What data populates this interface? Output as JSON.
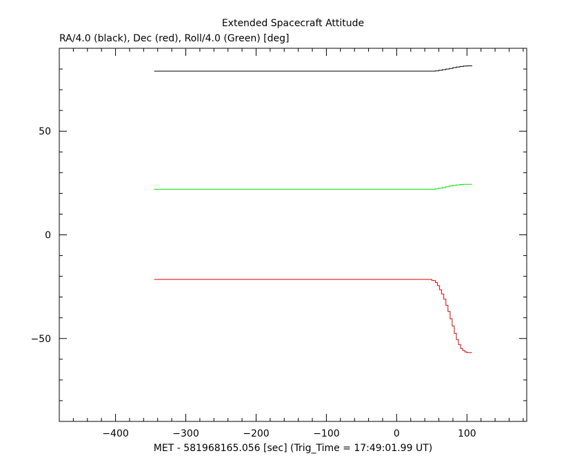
{
  "chart_data": {
    "type": "line",
    "title": "Extended Spacecraft Attitude",
    "subtitle": "RA/4.0 (black), Dec (red), Roll/4.0 (Green) [deg]",
    "xlabel": "MET - 581968165.056 [sec] (Trig_Time = 17:49:01.99 UT)",
    "ylabel": "",
    "xlim": [
      -480,
      185
    ],
    "ylim": [
      -90,
      90
    ],
    "grid": false,
    "legend": "none",
    "x_ticks": [
      {
        "value": -400,
        "label": "−400"
      },
      {
        "value": -300,
        "label": "−300"
      },
      {
        "value": -200,
        "label": "−200"
      },
      {
        "value": -100,
        "label": "−100"
      },
      {
        "value": 0,
        "label": "0"
      },
      {
        "value": 100,
        "label": "100"
      }
    ],
    "y_ticks": [
      {
        "value": 50,
        "label": "50"
      },
      {
        "value": 0,
        "label": "0"
      },
      {
        "value": -50,
        "label": "−50"
      }
    ],
    "x_minor_step": 20,
    "y_minor_step": 10,
    "series": [
      {
        "color": "#000000",
        "step": true,
        "points": [
          [
            -345,
            79.0
          ],
          [
            50,
            79.0
          ],
          [
            55,
            79.1
          ],
          [
            60,
            79.4
          ],
          [
            65,
            79.7
          ],
          [
            70,
            80.0
          ],
          [
            75,
            80.3
          ],
          [
            80,
            80.7
          ],
          [
            85,
            81.0
          ],
          [
            90,
            81.2
          ],
          [
            95,
            81.4
          ],
          [
            100,
            81.5
          ],
          [
            107,
            81.6
          ]
        ]
      },
      {
        "color": "#00e000",
        "step": true,
        "points": [
          [
            -345,
            22.0
          ],
          [
            50,
            22.0
          ],
          [
            55,
            22.2
          ],
          [
            60,
            22.5
          ],
          [
            65,
            22.8
          ],
          [
            70,
            23.2
          ],
          [
            75,
            23.6
          ],
          [
            80,
            23.9
          ],
          [
            85,
            24.1
          ],
          [
            90,
            24.3
          ],
          [
            95,
            24.4
          ],
          [
            107,
            24.4
          ]
        ]
      },
      {
        "color": "#e00000",
        "step": true,
        "points": [
          [
            -345,
            -21.5
          ],
          [
            45,
            -21.5
          ],
          [
            50,
            -22.0
          ],
          [
            55,
            -23.0
          ],
          [
            58,
            -24.5
          ],
          [
            61,
            -26.5
          ],
          [
            64,
            -28.5
          ],
          [
            67,
            -31.0
          ],
          [
            70,
            -34.0
          ],
          [
            73,
            -37.0
          ],
          [
            76,
            -40.5
          ],
          [
            79,
            -44.0
          ],
          [
            82,
            -47.5
          ],
          [
            85,
            -50.5
          ],
          [
            88,
            -53.0
          ],
          [
            91,
            -54.8
          ],
          [
            94,
            -55.8
          ],
          [
            97,
            -56.5
          ],
          [
            100,
            -56.8
          ],
          [
            107,
            -56.8
          ]
        ]
      }
    ]
  }
}
